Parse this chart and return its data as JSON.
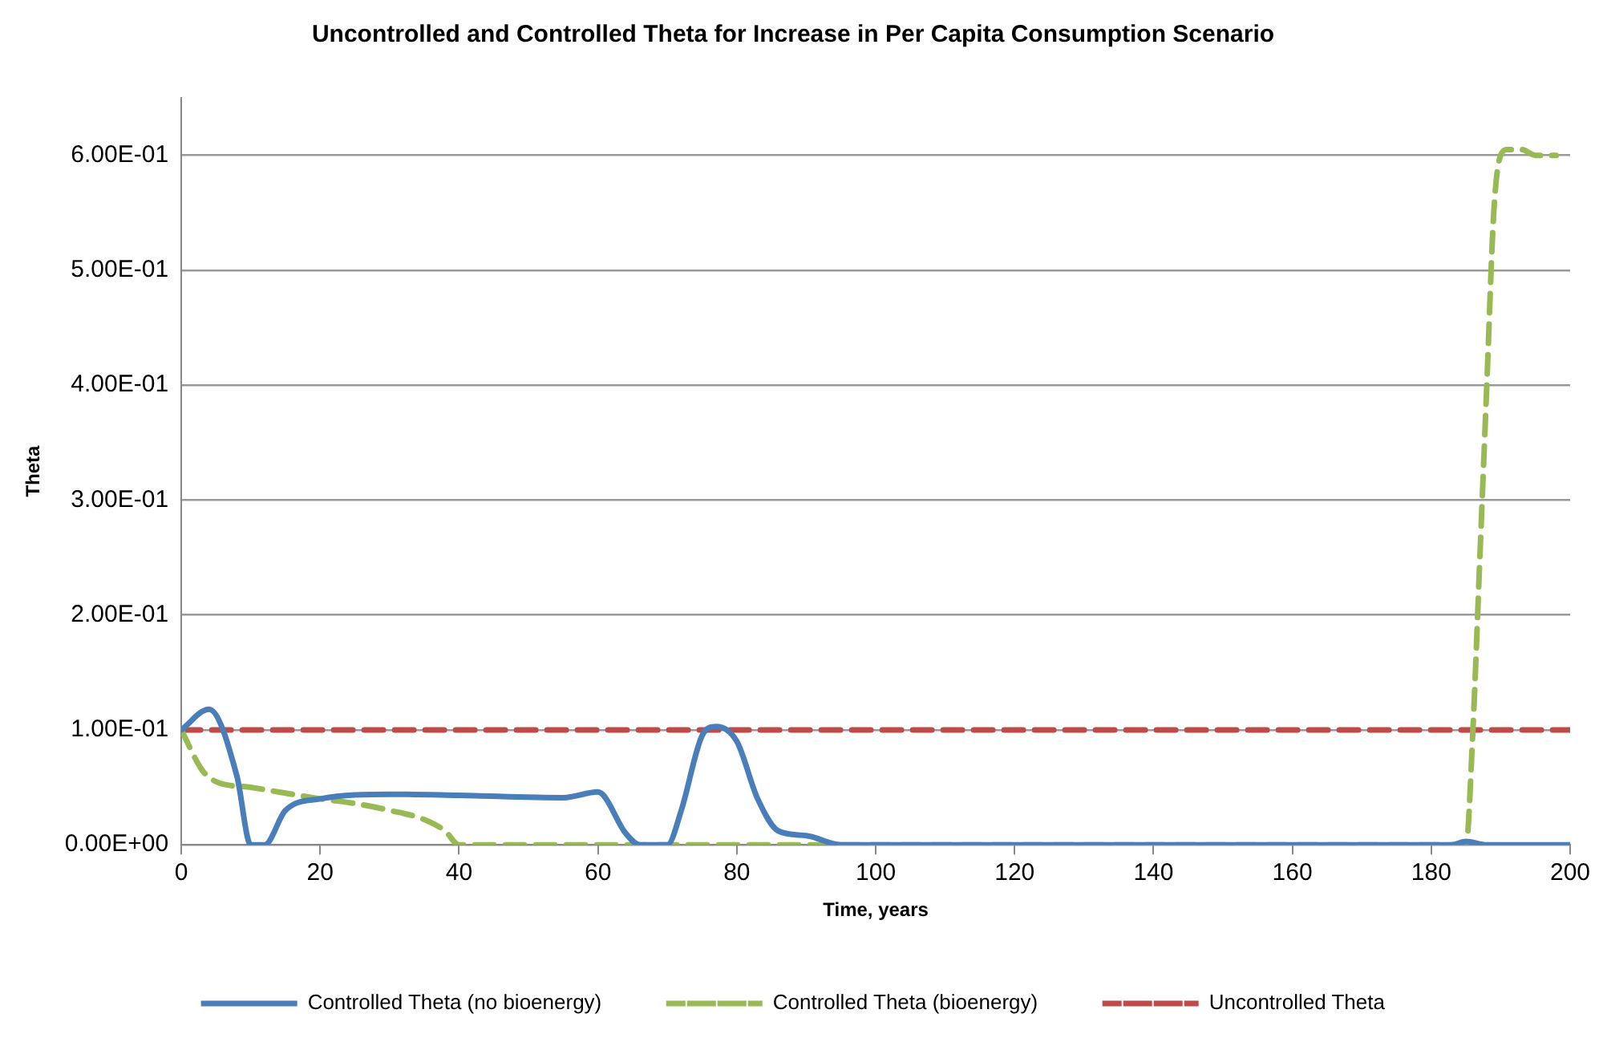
{
  "chart_data": {
    "type": "line",
    "title": "Uncontrolled and Controlled Theta for Increase in Per Capita Consumption Scenario",
    "xlabel": "Time, years",
    "ylabel": "Theta",
    "xlim": [
      0,
      200
    ],
    "xticks": [
      0,
      20,
      40,
      60,
      80,
      100,
      120,
      140,
      160,
      180,
      200
    ],
    "ylim": [
      0,
      0.65
    ],
    "yticks": [
      {
        "value": 0,
        "label": "0.00E+00"
      },
      {
        "value": 0.1,
        "label": "1.00E-01"
      },
      {
        "value": 0.2,
        "label": "2.00E-01"
      },
      {
        "value": 0.3,
        "label": "3.00E-01"
      },
      {
        "value": 0.4,
        "label": "4.00E-01"
      },
      {
        "value": 0.5,
        "label": "5.00E-01"
      },
      {
        "value": 0.6,
        "label": "6.00E-01"
      }
    ],
    "grid": "y",
    "legend": "bottom",
    "marker": "none",
    "series": [
      {
        "name": "Controlled Theta (no bioenergy)",
        "color": "#4a7ebb",
        "line_style": "solid",
        "x": [
          0,
          4,
          8,
          10,
          12,
          15,
          20,
          30,
          40,
          55,
          60,
          64,
          66,
          70,
          72,
          75,
          77,
          80,
          83,
          86,
          90,
          95,
          120,
          160,
          183,
          185,
          188,
          200
        ],
        "values": [
          0.1,
          0.118,
          0.06,
          0,
          0,
          0.03,
          0.04,
          0.044,
          0.043,
          0.041,
          0.046,
          0.01,
          0,
          0,
          0.03,
          0.095,
          0.103,
          0.09,
          0.04,
          0.012,
          0.008,
          0,
          0,
          0,
          0,
          0.003,
          0,
          0
        ]
      },
      {
        "name": "Controlled Theta (bioenergy)",
        "color": "#98b954",
        "line_style": "dashed",
        "x": [
          0,
          3,
          5,
          10,
          15,
          20,
          25,
          30,
          35,
          38,
          40,
          60,
          100,
          140,
          180,
          185,
          186,
          187,
          188,
          189,
          190,
          191,
          193,
          195,
          198
        ],
        "values": [
          0.1,
          0.065,
          0.055,
          0.05,
          0.045,
          0.04,
          0.036,
          0.03,
          0.022,
          0.012,
          0,
          0,
          0,
          0,
          0,
          0,
          0.1,
          0.25,
          0.4,
          0.55,
          0.6,
          0.605,
          0.605,
          0.6,
          0.6
        ]
      },
      {
        "name": "Uncontrolled Theta",
        "color": "#be4b48",
        "line_style": "dashed",
        "x": [
          0,
          200
        ],
        "values": [
          0.1,
          0.1
        ]
      }
    ]
  }
}
